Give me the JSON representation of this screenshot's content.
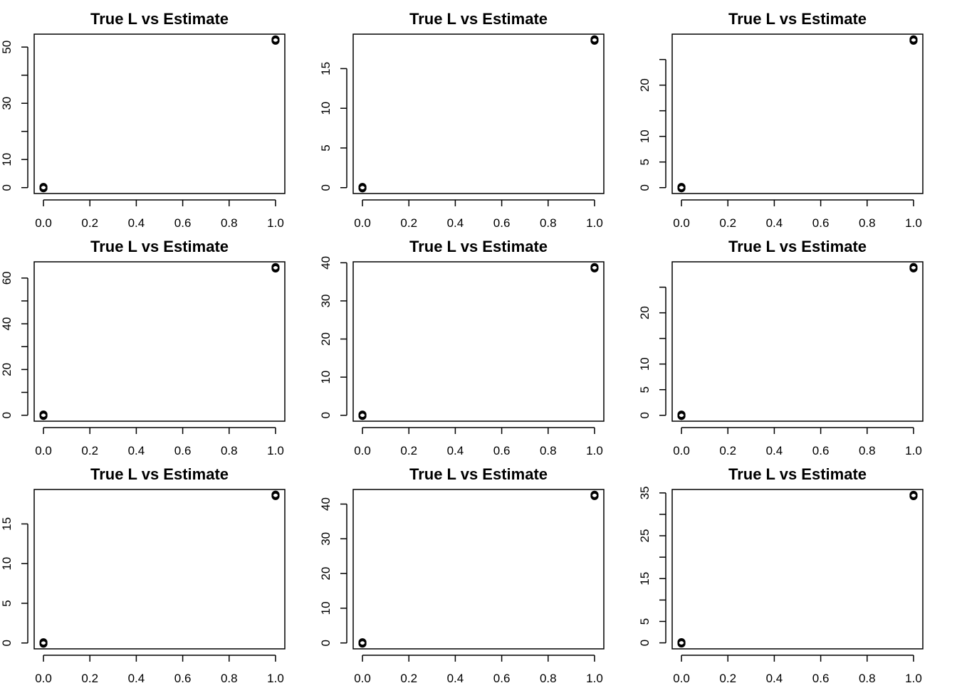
{
  "figure": {
    "background": "#ffffff",
    "foreground": "#000000"
  },
  "chart_data": [
    {
      "type": "scatter",
      "title": "True L vs Estimate",
      "x": [
        0,
        1
      ],
      "y": [
        0,
        52.5
      ],
      "xlim": [
        -0.04,
        1.04
      ],
      "ylim": [
        -2.1,
        54.6
      ],
      "xticks": [
        0,
        0.2,
        0.4,
        0.6,
        0.8,
        1
      ],
      "xtick_labels": [
        "0.0",
        "0.2",
        "0.4",
        "0.6",
        "0.8",
        "1.0"
      ],
      "yticks": [
        0,
        10,
        20,
        30,
        40,
        50
      ],
      "ytick_labels": [
        "0",
        "10",
        "",
        "30",
        "",
        "50"
      ]
    },
    {
      "type": "scatter",
      "title": "True L vs Estimate",
      "x": [
        0,
        1
      ],
      "y": [
        0,
        18.6
      ],
      "xlim": [
        -0.04,
        1.04
      ],
      "ylim": [
        -0.74,
        19.34
      ],
      "xticks": [
        0,
        0.2,
        0.4,
        0.6,
        0.8,
        1
      ],
      "xtick_labels": [
        "0.0",
        "0.2",
        "0.4",
        "0.6",
        "0.8",
        "1.0"
      ],
      "yticks": [
        0,
        5,
        10,
        15
      ],
      "ytick_labels": [
        "0",
        "5",
        "10",
        "15"
      ]
    },
    {
      "type": "scatter",
      "title": "True L vs Estimate",
      "x": [
        0,
        1
      ],
      "y": [
        0,
        28.8
      ],
      "xlim": [
        -0.04,
        1.04
      ],
      "ylim": [
        -1.15,
        29.95
      ],
      "xticks": [
        0,
        0.2,
        0.4,
        0.6,
        0.8,
        1
      ],
      "xtick_labels": [
        "0.0",
        "0.2",
        "0.4",
        "0.6",
        "0.8",
        "1.0"
      ],
      "yticks": [
        0,
        5,
        10,
        15,
        20,
        25
      ],
      "ytick_labels": [
        "0",
        "5",
        "10",
        "",
        "20",
        ""
      ]
    },
    {
      "type": "scatter",
      "title": "True L vs Estimate",
      "x": [
        0,
        1
      ],
      "y": [
        0,
        64.5
      ],
      "xlim": [
        -0.04,
        1.04
      ],
      "ylim": [
        -2.6,
        67.1
      ],
      "xticks": [
        0,
        0.2,
        0.4,
        0.6,
        0.8,
        1
      ],
      "xtick_labels": [
        "0.0",
        "0.2",
        "0.4",
        "0.6",
        "0.8",
        "1.0"
      ],
      "yticks": [
        0,
        10,
        20,
        30,
        40,
        50,
        60
      ],
      "ytick_labels": [
        "0",
        "",
        "20",
        "",
        "40",
        "",
        "60"
      ]
    },
    {
      "type": "scatter",
      "title": "True L vs Estimate",
      "x": [
        0,
        1
      ],
      "y": [
        0,
        38.7
      ],
      "xlim": [
        -0.04,
        1.04
      ],
      "ylim": [
        -1.55,
        40.25
      ],
      "xticks": [
        0,
        0.2,
        0.4,
        0.6,
        0.8,
        1
      ],
      "xtick_labels": [
        "0.0",
        "0.2",
        "0.4",
        "0.6",
        "0.8",
        "1.0"
      ],
      "yticks": [
        0,
        10,
        20,
        30,
        40
      ],
      "ytick_labels": [
        "0",
        "10",
        "20",
        "30",
        "40"
      ]
    },
    {
      "type": "scatter",
      "title": "True L vs Estimate",
      "x": [
        0,
        1
      ],
      "y": [
        0,
        28.8
      ],
      "xlim": [
        -0.04,
        1.04
      ],
      "ylim": [
        -1.15,
        29.95
      ],
      "xticks": [
        0,
        0.2,
        0.4,
        0.6,
        0.8,
        1
      ],
      "xtick_labels": [
        "0.0",
        "0.2",
        "0.4",
        "0.6",
        "0.8",
        "1.0"
      ],
      "yticks": [
        0,
        5,
        10,
        15,
        20,
        25
      ],
      "ytick_labels": [
        "0",
        "5",
        "10",
        "",
        "20",
        ""
      ]
    },
    {
      "type": "scatter",
      "title": "True L vs Estimate",
      "x": [
        0,
        1
      ],
      "y": [
        0,
        18.6
      ],
      "xlim": [
        -0.04,
        1.04
      ],
      "ylim": [
        -0.74,
        19.34
      ],
      "xticks": [
        0,
        0.2,
        0.4,
        0.6,
        0.8,
        1
      ],
      "xtick_labels": [
        "0.0",
        "0.2",
        "0.4",
        "0.6",
        "0.8",
        "1.0"
      ],
      "yticks": [
        0,
        5,
        10,
        15
      ],
      "ytick_labels": [
        "0",
        "5",
        "10",
        "15"
      ]
    },
    {
      "type": "scatter",
      "title": "True L vs Estimate",
      "x": [
        0,
        1
      ],
      "y": [
        0,
        42.5
      ],
      "xlim": [
        -0.04,
        1.04
      ],
      "ylim": [
        -1.7,
        44.2
      ],
      "xticks": [
        0,
        0.2,
        0.4,
        0.6,
        0.8,
        1
      ],
      "xtick_labels": [
        "0.0",
        "0.2",
        "0.4",
        "0.6",
        "0.8",
        "1.0"
      ],
      "yticks": [
        0,
        10,
        20,
        30,
        40
      ],
      "ytick_labels": [
        "0",
        "10",
        "20",
        "30",
        "40"
      ]
    },
    {
      "type": "scatter",
      "title": "True L vs Estimate",
      "x": [
        0,
        1
      ],
      "y": [
        0,
        34.4
      ],
      "xlim": [
        -0.04,
        1.04
      ],
      "ylim": [
        -1.4,
        35.8
      ],
      "xticks": [
        0,
        0.2,
        0.4,
        0.6,
        0.8,
        1
      ],
      "xtick_labels": [
        "0.0",
        "0.2",
        "0.4",
        "0.6",
        "0.8",
        "1.0"
      ],
      "yticks": [
        0,
        5,
        10,
        15,
        20,
        25,
        30,
        35
      ],
      "ytick_labels": [
        "0",
        "5",
        "",
        "15",
        "",
        "25",
        "",
        "35"
      ]
    }
  ]
}
